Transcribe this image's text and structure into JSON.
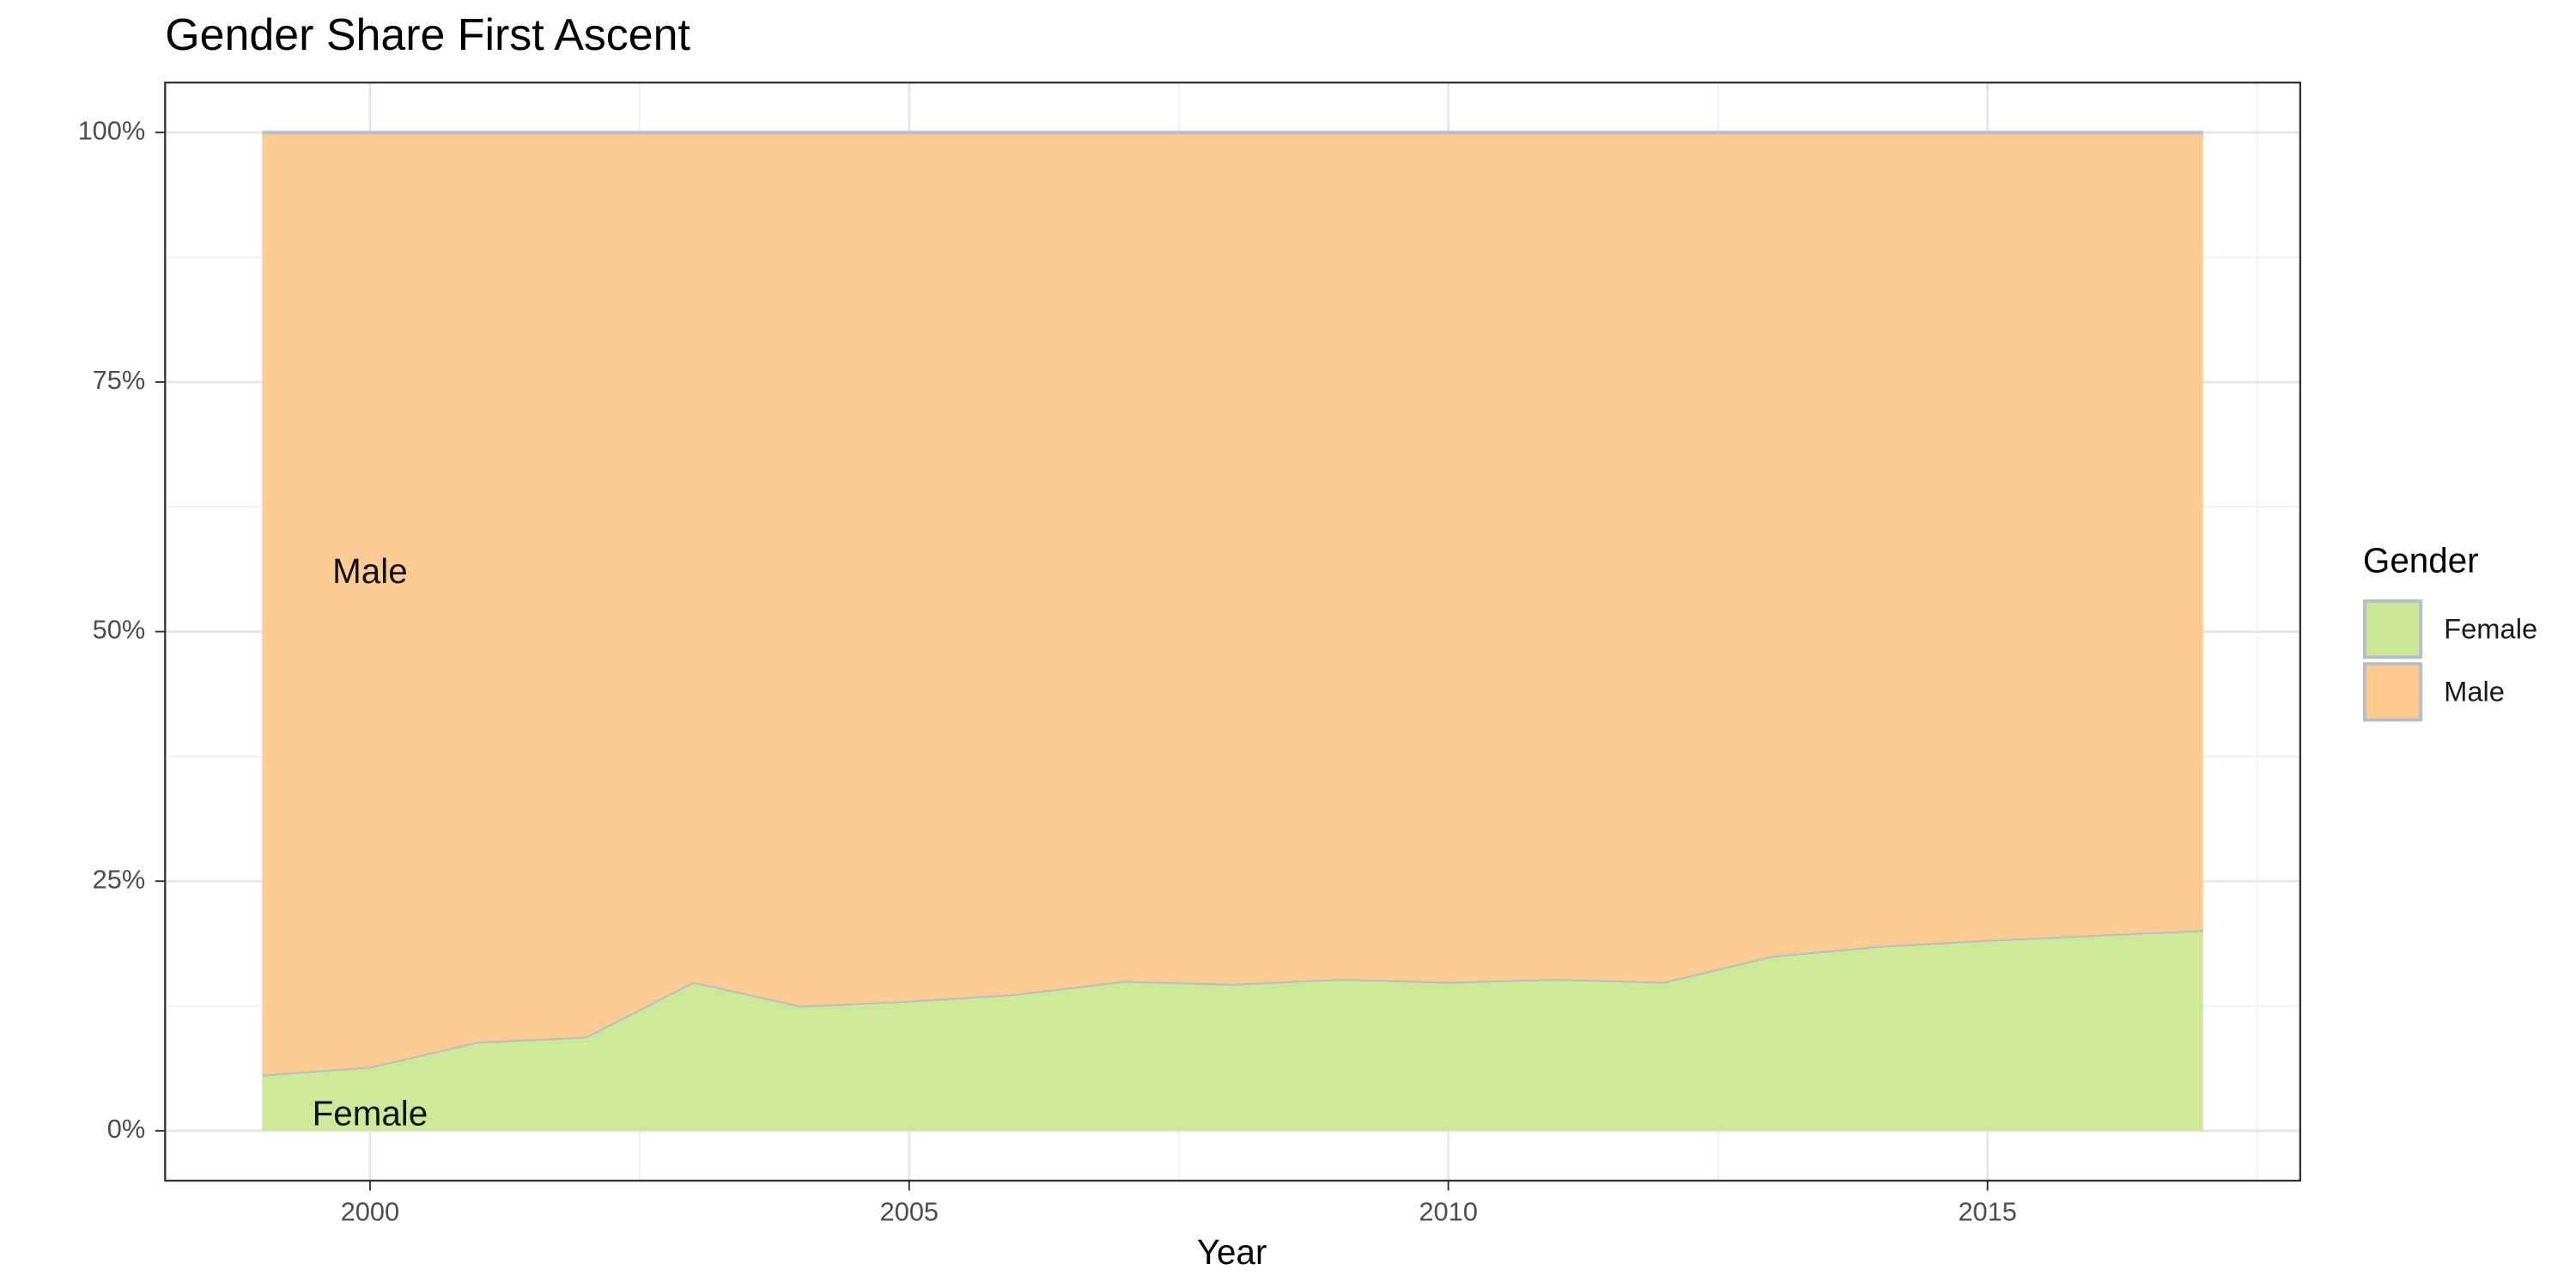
{
  "chart_data": {
    "type": "area",
    "stacked": true,
    "title": "Gender Share First Ascent",
    "x_label": "Year",
    "legend_title": "Gender",
    "legend_position": "right",
    "grid": true,
    "x": [
      1999,
      2000,
      2001,
      2002,
      2003,
      2004,
      2005,
      2006,
      2007,
      2008,
      2009,
      2010,
      2011,
      2012,
      2013,
      2014,
      2015,
      2016,
      2017
    ],
    "series": [
      {
        "name": "Female",
        "color": "#c9e794",
        "values": [
          5.6,
          6.4,
          8.9,
          9.4,
          14.9,
          12.5,
          13.0,
          13.7,
          15.0,
          14.7,
          15.2,
          14.9,
          15.2,
          14.9,
          17.5,
          18.5,
          19.1,
          19.6,
          20.1
        ]
      },
      {
        "name": "Male",
        "color": "#fdc98f",
        "values": [
          94.4,
          93.6,
          91.1,
          90.6,
          85.1,
          87.5,
          87.0,
          86.3,
          85.0,
          85.3,
          84.8,
          85.1,
          84.8,
          85.1,
          82.5,
          81.5,
          80.9,
          80.4,
          79.9
        ]
      }
    ],
    "annotations": [
      "Male",
      "Female"
    ],
    "xlim": [
      1998.1,
      2017.9
    ],
    "xticks": [
      2000,
      2005,
      2010,
      2015
    ],
    "ylim": [
      -5,
      105
    ],
    "yticks": [
      {
        "value": 0,
        "label": "0%"
      },
      {
        "value": 25,
        "label": "25%"
      },
      {
        "value": 50,
        "label": "50%"
      },
      {
        "value": 75,
        "label": "75%"
      },
      {
        "value": 100,
        "label": "100%"
      }
    ]
  }
}
